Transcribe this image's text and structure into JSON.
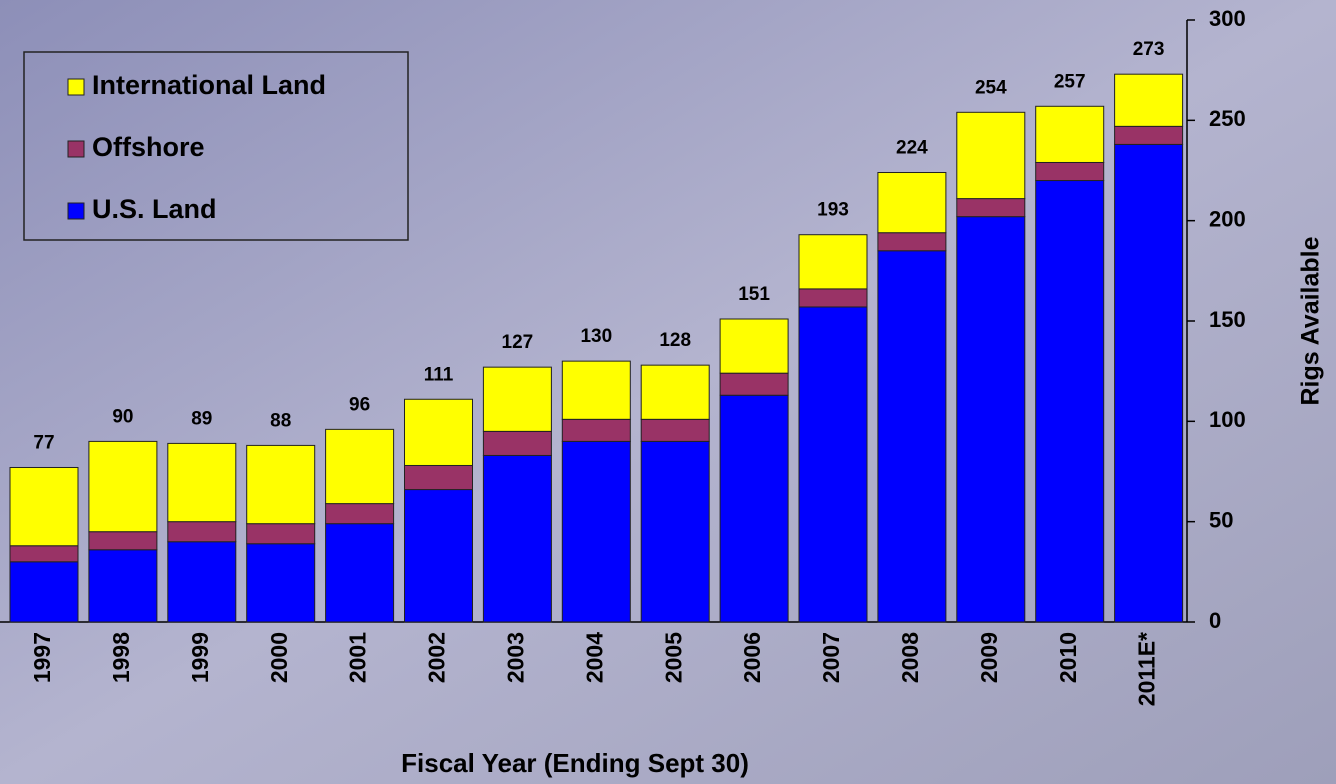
{
  "chart_data": {
    "type": "stacked-bar",
    "categories": [
      "1997",
      "1998",
      "1999",
      "2000",
      "2001",
      "2002",
      "2003",
      "2004",
      "2005",
      "2006",
      "2007",
      "2008",
      "2009",
      "2010",
      "2011E*"
    ],
    "series": [
      {
        "name": "U.S. Land",
        "color": "#0000ff",
        "values": [
          30,
          36,
          40,
          39,
          49,
          66,
          83,
          90,
          90,
          113,
          157,
          185,
          202,
          220,
          238
        ]
      },
      {
        "name": "Offshore",
        "color": "#993366",
        "values": [
          8,
          9,
          10,
          10,
          10,
          12,
          12,
          11,
          11,
          11,
          9,
          9,
          9,
          9,
          9
        ]
      },
      {
        "name": "International Land",
        "color": "#ffff00",
        "values": [
          39,
          45,
          39,
          39,
          37,
          33,
          32,
          29,
          27,
          27,
          27,
          30,
          43,
          28,
          26
        ]
      }
    ],
    "totals": [
      77,
      90,
      89,
      88,
      96,
      111,
      127,
      130,
      128,
      151,
      193,
      224,
      254,
      257,
      273
    ],
    "xlabel": "Fiscal Year (Ending Sept 30)",
    "ylabel": "Rigs Available",
    "ylim": [
      0,
      300
    ],
    "yticks": [
      0,
      50,
      100,
      150,
      200,
      250,
      300
    ],
    "legend": "upper left"
  }
}
